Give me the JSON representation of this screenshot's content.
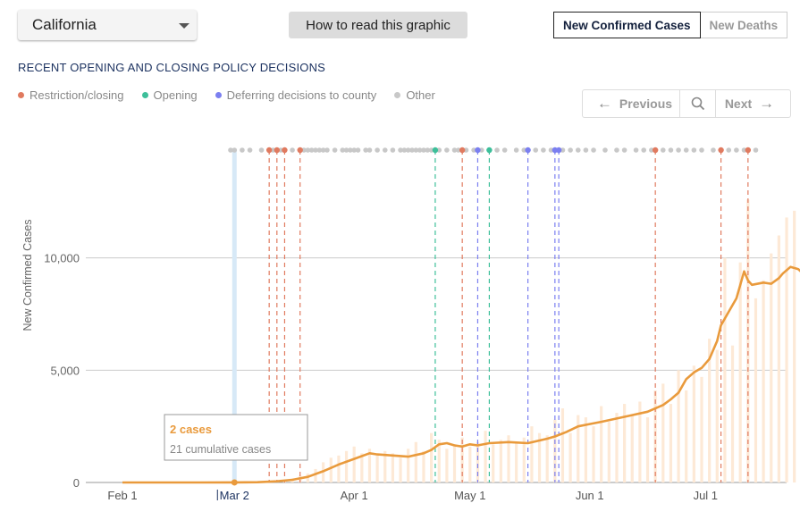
{
  "header": {
    "state_selected": "California",
    "howto_label": "How to read this graphic",
    "metric_tabs": [
      {
        "label": "New Confirmed Cases",
        "active": true
      },
      {
        "label": "New Deaths",
        "active": false
      }
    ]
  },
  "policy": {
    "section_title": "RECENT OPENING AND CLOSING POLICY DECISIONS",
    "legend": [
      {
        "label": "Restriction/closing",
        "color": "#e07a5f"
      },
      {
        "label": "Opening",
        "color": "#3dbf9a"
      },
      {
        "label": "Deferring decisions to county",
        "color": "#7b7ff0"
      },
      {
        "label": "Other",
        "color": "#c8c8c8"
      }
    ],
    "pager": {
      "previous_label": "Previous",
      "next_label": "Next"
    }
  },
  "colors": {
    "line": "#e99a3c",
    "bars": "#fde9d6",
    "highlight": "#d7e9f7",
    "gridline": "#cccccc"
  },
  "chart_data": {
    "type": "line",
    "ylabel": "New Confirmed Cases",
    "ylim": [
      0,
      14800
    ],
    "yticks": [
      {
        "value": 0,
        "label": "0"
      },
      {
        "value": 5000,
        "label": "5,000"
      },
      {
        "value": 10000,
        "label": "10,000"
      }
    ],
    "xticks": [
      {
        "day": 0,
        "label": "Feb 1"
      },
      {
        "day": 29,
        "label": "Mar 2"
      },
      {
        "day": 60,
        "label": "Apr 1"
      },
      {
        "day": 90,
        "label": "May 1"
      },
      {
        "day": 121,
        "label": "Jun 1"
      },
      {
        "day": 151,
        "label": "Jul 1"
      }
    ],
    "highlight_day": 29,
    "tooltip": {
      "day": 29,
      "title": "2 cases",
      "detail": "21 cumulative cases"
    },
    "policy_events": [
      {
        "day": 38,
        "type": "restriction"
      },
      {
        "day": 40,
        "type": "restriction"
      },
      {
        "day": 42,
        "type": "restriction"
      },
      {
        "day": 46,
        "type": "restriction"
      },
      {
        "day": 81,
        "type": "opening"
      },
      {
        "day": 88,
        "type": "restriction"
      },
      {
        "day": 92,
        "type": "county"
      },
      {
        "day": 95,
        "type": "opening"
      },
      {
        "day": 105,
        "type": "county"
      },
      {
        "day": 112,
        "type": "county"
      },
      {
        "day": 113,
        "type": "county"
      },
      {
        "day": 138,
        "type": "restriction"
      },
      {
        "day": 155,
        "type": "restriction"
      },
      {
        "day": 162,
        "type": "restriction"
      }
    ],
    "other_event_days": [
      28,
      29,
      31,
      33,
      36,
      39,
      41,
      44,
      47,
      48,
      49,
      50,
      51,
      52,
      53,
      55,
      57,
      58,
      59,
      60,
      61,
      63,
      64,
      66,
      68,
      70,
      72,
      73,
      74,
      75,
      76,
      77,
      78,
      79,
      80,
      82,
      84,
      86,
      87,
      89,
      91,
      93,
      97,
      99,
      102,
      104,
      107,
      109,
      111,
      114,
      116,
      118,
      120,
      122,
      125,
      128,
      130,
      133,
      135,
      137,
      140,
      142,
      144,
      146,
      148,
      150,
      153,
      157,
      159,
      161,
      164
    ],
    "smoothed_line": [
      [
        0,
        0
      ],
      [
        10,
        0
      ],
      [
        20,
        0
      ],
      [
        29,
        2
      ],
      [
        35,
        10
      ],
      [
        40,
        50
      ],
      [
        44,
        120
      ],
      [
        48,
        250
      ],
      [
        52,
        500
      ],
      [
        56,
        800
      ],
      [
        60,
        1050
      ],
      [
        64,
        1300
      ],
      [
        66,
        1250
      ],
      [
        70,
        1200
      ],
      [
        74,
        1150
      ],
      [
        78,
        1300
      ],
      [
        80,
        1450
      ],
      [
        82,
        1700
      ],
      [
        84,
        1750
      ],
      [
        86,
        1650
      ],
      [
        88,
        1600
      ],
      [
        90,
        1700
      ],
      [
        92,
        1650
      ],
      [
        95,
        1750
      ],
      [
        100,
        1800
      ],
      [
        105,
        1750
      ],
      [
        110,
        1950
      ],
      [
        112,
        2050
      ],
      [
        115,
        2250
      ],
      [
        118,
        2500
      ],
      [
        121,
        2600
      ],
      [
        124,
        2700
      ],
      [
        128,
        2850
      ],
      [
        132,
        3000
      ],
      [
        136,
        3150
      ],
      [
        140,
        3450
      ],
      [
        142,
        3700
      ],
      [
        144,
        4000
      ],
      [
        146,
        4600
      ],
      [
        148,
        4900
      ],
      [
        150,
        5100
      ],
      [
        152,
        5500
      ],
      [
        154,
        6300
      ],
      [
        155,
        7000
      ],
      [
        157,
        7600
      ],
      [
        159,
        8200
      ],
      [
        160,
        8800
      ],
      [
        161,
        9400
      ],
      [
        162,
        9000
      ],
      [
        163,
        8800
      ],
      [
        166,
        8900
      ],
      [
        168,
        8850
      ],
      [
        170,
        9100
      ],
      [
        171,
        9300
      ],
      [
        173,
        9600
      ],
      [
        175,
        9500
      ],
      [
        177,
        9200
      ],
      [
        178,
        8800
      ]
    ],
    "daily_bars": [
      [
        30,
        5
      ],
      [
        32,
        8
      ],
      [
        34,
        15
      ],
      [
        36,
        20
      ],
      [
        38,
        30
      ],
      [
        40,
        60
      ],
      [
        42,
        100
      ],
      [
        44,
        180
      ],
      [
        46,
        300
      ],
      [
        48,
        400
      ],
      [
        50,
        600
      ],
      [
        52,
        900
      ],
      [
        54,
        1100
      ],
      [
        56,
        1200
      ],
      [
        58,
        1400
      ],
      [
        60,
        1600
      ],
      [
        62,
        1300
      ],
      [
        64,
        1500
      ],
      [
        66,
        1200
      ],
      [
        68,
        1400
      ],
      [
        70,
        1300
      ],
      [
        72,
        1100
      ],
      [
        74,
        1500
      ],
      [
        76,
        1800
      ],
      [
        78,
        1400
      ],
      [
        80,
        2200
      ],
      [
        82,
        1900
      ],
      [
        84,
        1500
      ],
      [
        86,
        1700
      ],
      [
        88,
        2000
      ],
      [
        90,
        1600
      ],
      [
        92,
        1800
      ],
      [
        94,
        2300
      ],
      [
        96,
        1700
      ],
      [
        98,
        1900
      ],
      [
        100,
        2100
      ],
      [
        102,
        1800
      ],
      [
        104,
        2000
      ],
      [
        106,
        2500
      ],
      [
        108,
        2200
      ],
      [
        110,
        2100
      ],
      [
        112,
        2800
      ],
      [
        114,
        3300
      ],
      [
        116,
        2200
      ],
      [
        118,
        3000
      ],
      [
        120,
        2900
      ],
      [
        122,
        2500
      ],
      [
        124,
        3400
      ],
      [
        126,
        2700
      ],
      [
        128,
        3100
      ],
      [
        130,
        3500
      ],
      [
        132,
        3000
      ],
      [
        134,
        3600
      ],
      [
        136,
        2900
      ],
      [
        138,
        4100
      ],
      [
        140,
        4400
      ],
      [
        142,
        3500
      ],
      [
        144,
        5000
      ],
      [
        146,
        4100
      ],
      [
        148,
        5200
      ],
      [
        150,
        4700
      ],
      [
        152,
        6400
      ],
      [
        154,
        5900
      ],
      [
        156,
        10000
      ],
      [
        158,
        6100
      ],
      [
        160,
        9800
      ],
      [
        162,
        12600
      ],
      [
        164,
        8200
      ],
      [
        166,
        9000
      ],
      [
        168,
        10200
      ],
      [
        170,
        11000
      ],
      [
        172,
        11800
      ],
      [
        174,
        12100
      ],
      [
        176,
        10200
      ],
      [
        178,
        5800
      ]
    ]
  }
}
